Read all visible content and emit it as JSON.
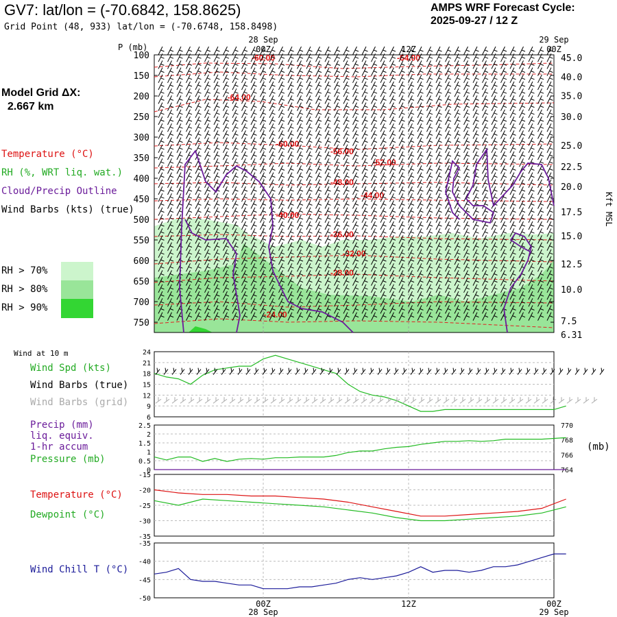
{
  "header": {
    "title": "GV7:  lat/lon = (-70.6842, 158.8625)",
    "subtitle": "Grid Point (48, 933) lat/lon = (-70.6748, 158.8498)",
    "cycle_line1": "AMPS WRF Forecast Cycle:",
    "cycle_line2": "2025-09-27 / 12  Z",
    "model_grid_line1": "Model Grid ΔX:",
    "model_grid_line2": "  2.667 km"
  },
  "legend": {
    "temperature": "Temperature (°C)",
    "rh": "RH (%, WRT liq. wat.)",
    "cloud": "Cloud/Precip Outline",
    "wind_barbs": "Wind Barbs (kts) (true)",
    "rh70": "RH > 70%",
    "rh80": "RH > 80%",
    "rh90": "RH > 90%",
    "rh70_color": "#ccf5cc",
    "rh80_color": "#99e599",
    "rh90_color": "#33d633",
    "wind10": "Wind at 10 m",
    "wind_spd": "Wind Spd (kts)",
    "barbs_true": "Wind Barbs (true)",
    "barbs_grid": "Wind Barbs (grid)",
    "precip1": "Precip (mm)",
    "precip2": "liq. equiv.",
    "precip3": "1-hr accum",
    "pressure": "Pressure (mb)",
    "pressure_unit": "(mb)",
    "temp2": "Temperature (°C)",
    "dewpoint": "Dewpoint (°C)",
    "windchill": "Wind Chill T (°C)"
  },
  "chart_data": [
    {
      "type": "cross-section",
      "ylabel": "P (mb)",
      "y2label": "Kft MSL",
      "x_date_top_left": "28 Sep",
      "x_date_top_right": "29 Sep",
      "x_ticks": [
        "00Z",
        "12Z",
        "00Z"
      ],
      "y_ticks": [
        100,
        150,
        200,
        250,
        300,
        350,
        400,
        450,
        500,
        550,
        600,
        650,
        700,
        750
      ],
      "y2_ticks": [
        "45.0",
        "40.0",
        "35.0",
        "30.0",
        "25.0",
        "22.5",
        "20.0",
        "17.5",
        "15.0",
        "12.5",
        "10.0",
        "7.5",
        "6.31"
      ],
      "y2_pressure": [
        107,
        153,
        199,
        250,
        320,
        372,
        420,
        482,
        540,
        608,
        670,
        747,
        780
      ],
      "temp_labels": [
        {
          "text": "-60.00",
          "h": 0,
          "p": 106
        },
        {
          "text": "-64.00",
          "h": 12,
          "p": 106
        },
        {
          "text": "-64.00",
          "h": -2,
          "p": 202
        },
        {
          "text": "-60.00",
          "h": 2,
          "p": 315
        },
        {
          "text": "-56.00",
          "h": 6.5,
          "p": 333
        },
        {
          "text": "-52.00",
          "h": 10,
          "p": 360
        },
        {
          "text": "-48.00",
          "h": 6.5,
          "p": 408
        },
        {
          "text": "-44.00",
          "h": 9,
          "p": 440
        },
        {
          "text": "-40.00",
          "h": 2,
          "p": 488
        },
        {
          "text": "-36.00",
          "h": 6.5,
          "p": 535
        },
        {
          "text": "-32.00",
          "h": 7.5,
          "p": 582
        },
        {
          "text": "-28.00",
          "h": 6.5,
          "p": 628
        },
        {
          "text": "-24.00",
          "h": 1,
          "p": 730
        }
      ]
    },
    {
      "type": "line",
      "name": "wind_speed",
      "ylim": [
        6,
        24
      ],
      "y_ticks": [
        24,
        21,
        18,
        15,
        12,
        9,
        6
      ],
      "x": [
        -9,
        -8,
        -7,
        -6,
        -5,
        -4,
        -3,
        -2,
        -1,
        0,
        1,
        2,
        3,
        4,
        5,
        6,
        7,
        8,
        9,
        10,
        11,
        12,
        13,
        14,
        15,
        16,
        17,
        18,
        19,
        20,
        21,
        22,
        23,
        24,
        25
      ],
      "values": [
        18,
        17,
        16.5,
        15,
        17.5,
        19,
        19.5,
        20,
        20,
        22,
        23,
        22,
        21,
        20,
        19,
        18,
        15,
        13,
        12,
        11.5,
        10.5,
        9,
        7.5,
        7.5,
        8,
        8,
        8,
        8,
        8,
        8,
        8,
        8,
        8,
        8,
        9
      ]
    },
    {
      "type": "line",
      "name": "precip_pressure",
      "ylim": [
        0,
        2.5
      ],
      "y_ticks": [
        2.5,
        2.0,
        1.5,
        1.0,
        0.5,
        0.0
      ],
      "y2_ticks": [
        770,
        768,
        766,
        764
      ],
      "y2lim": [
        764,
        770
      ],
      "x": [
        -9,
        -8,
        -7,
        -6,
        -5,
        -4,
        -3,
        -2,
        -1,
        0,
        1,
        2,
        3,
        4,
        5,
        6,
        7,
        8,
        9,
        10,
        11,
        12,
        13,
        14,
        15,
        16,
        17,
        18,
        19,
        20,
        21,
        22,
        23,
        24,
        25
      ],
      "pressure": [
        765.7,
        765.3,
        765.7,
        765.7,
        765.1,
        765.5,
        765.1,
        765.4,
        765.5,
        765.4,
        765.6,
        765.6,
        765.7,
        765.7,
        765.7,
        765.9,
        766.3,
        766.5,
        766.5,
        766.8,
        767.0,
        767.1,
        767.4,
        767.6,
        767.8,
        767.8,
        767.9,
        767.8,
        767.9,
        768.1,
        768.1,
        768.1,
        768.1,
        768.2,
        768.3
      ],
      "precip": [
        0,
        0,
        0,
        0,
        0,
        0,
        0,
        0,
        0,
        0,
        0,
        0,
        0,
        0,
        0,
        0,
        0,
        0,
        0,
        0,
        0,
        0,
        0,
        0,
        0,
        0,
        0,
        0,
        0,
        0,
        0,
        0,
        0,
        0,
        0
      ]
    },
    {
      "type": "line",
      "name": "temperature_dewpoint",
      "ylim": [
        -35,
        -15
      ],
      "y_ticks": [
        -15,
        -20,
        -25,
        -30,
        -35
      ],
      "x": [
        -9,
        -7,
        -5,
        -3,
        -1,
        1,
        3,
        5,
        7,
        9,
        11,
        13,
        15,
        17,
        19,
        21,
        23,
        25
      ],
      "temperature": [
        -20,
        -21,
        -21.5,
        -21.5,
        -22,
        -22,
        -22.5,
        -23,
        -24,
        -25.5,
        -27,
        -28.5,
        -28.5,
        -28,
        -27.5,
        -27,
        -26,
        -23
      ],
      "dewpoint": [
        -23.5,
        -25,
        -23,
        -23.5,
        -24,
        -24.5,
        -25,
        -25.5,
        -26.5,
        -27.5,
        -29,
        -30,
        -30,
        -29.5,
        -29,
        -28.5,
        -27.5,
        -25.5
      ]
    },
    {
      "type": "line",
      "name": "wind_chill",
      "ylim": [
        -50,
        -35
      ],
      "y_ticks": [
        -35,
        -40,
        -45,
        -50
      ],
      "x": [
        -9,
        -8,
        -7,
        -6,
        -5,
        -4,
        -3,
        -2,
        -1,
        0,
        1,
        2,
        3,
        4,
        5,
        6,
        7,
        8,
        9,
        10,
        11,
        12,
        13,
        14,
        15,
        16,
        17,
        18,
        19,
        20,
        21,
        22,
        23,
        24,
        25
      ],
      "values": [
        -43.5,
        -43,
        -42,
        -45,
        -45.5,
        -45.5,
        -46,
        -46.5,
        -46.5,
        -47.5,
        -47.5,
        -47.5,
        -47,
        -47,
        -46.5,
        -46,
        -45,
        -44.5,
        -45,
        -44.5,
        -44,
        -43,
        -41.5,
        -43,
        -42.5,
        -42.5,
        -43,
        -42.5,
        -41.5,
        -41.5,
        -41,
        -40,
        -39,
        -38,
        -38
      ]
    }
  ]
}
